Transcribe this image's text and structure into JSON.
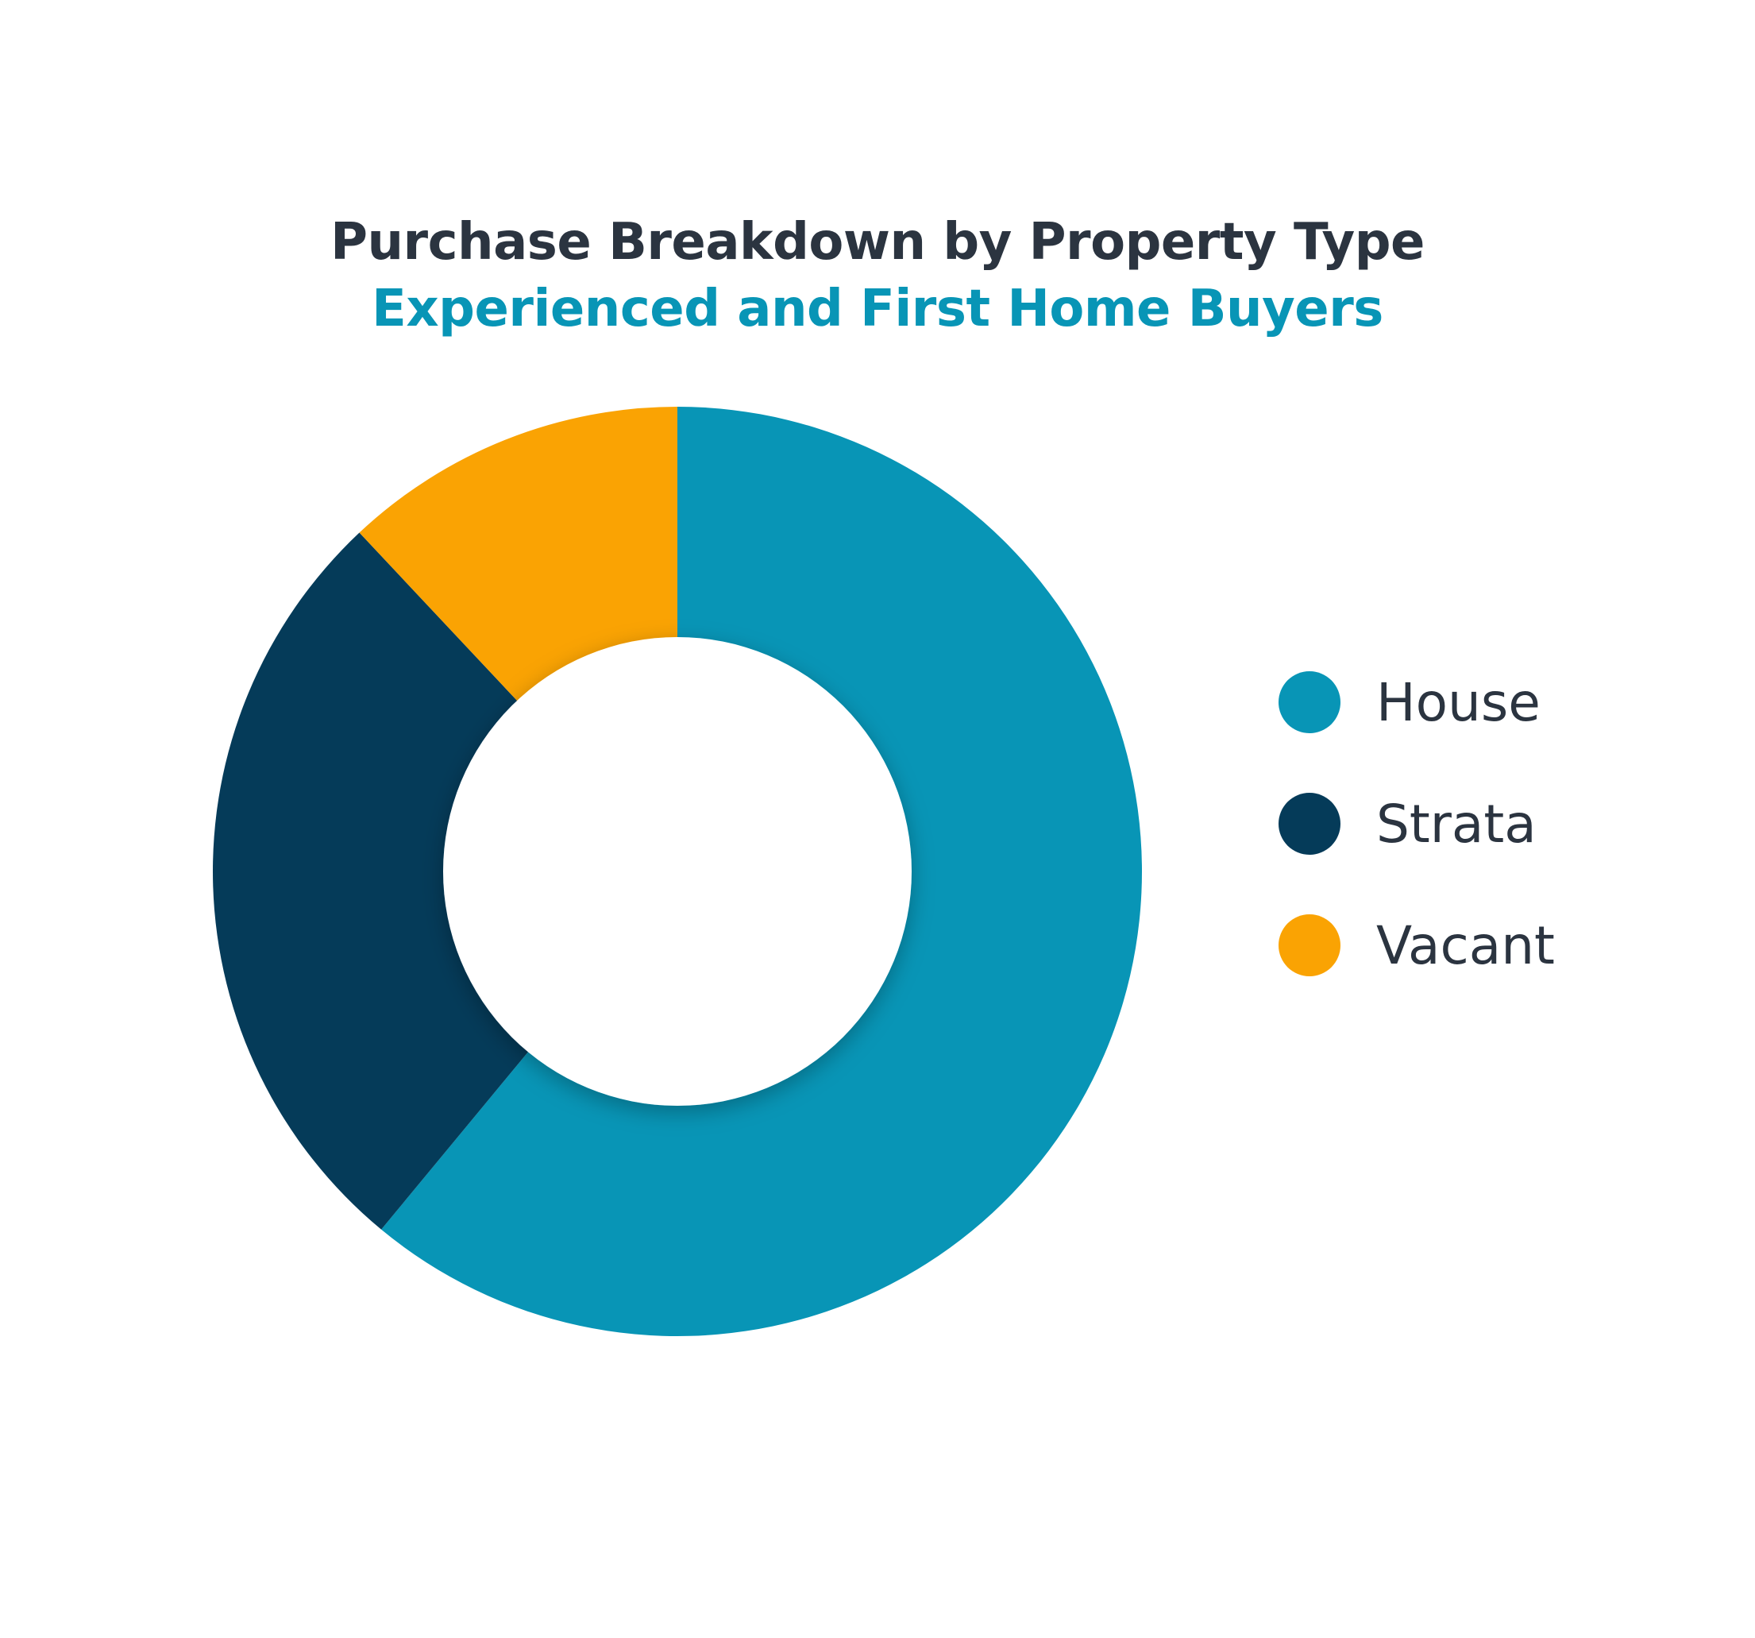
{
  "chart_data": {
    "type": "pie",
    "variant": "donut",
    "title": "Purchase Breakdown by Property Type",
    "subtitle": "Experienced and First Home Buyers",
    "categories": [
      "House",
      "Strata",
      "Vacant"
    ],
    "values": [
      61,
      27,
      12
    ],
    "value_unit": "percent of purchases (estimated from slice angles)",
    "colors": [
      "#0895b6",
      "#053b59",
      "#faa303"
    ],
    "legend_position": "right",
    "start_angle_deg_clockwise_from_top": 0
  },
  "colors": {
    "title": "#2b3440",
    "subtitle": "#0895b6",
    "legend_text": "#2b3440",
    "background": "#ffffff"
  }
}
